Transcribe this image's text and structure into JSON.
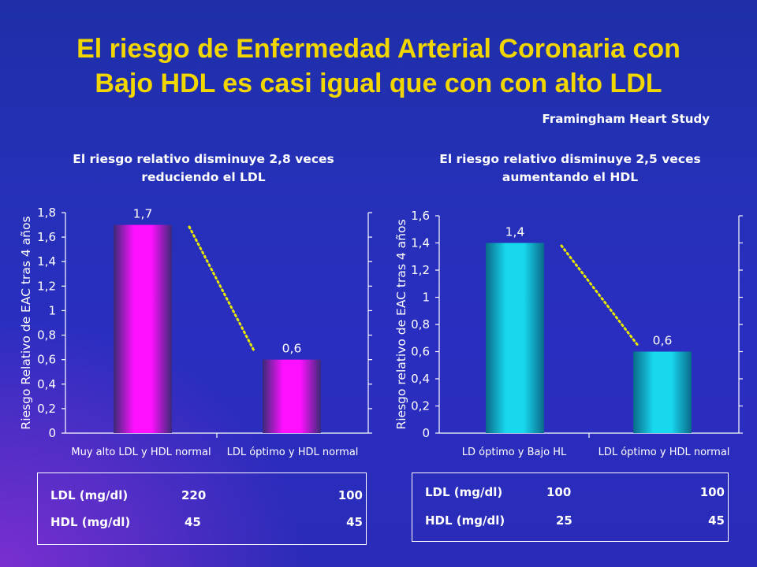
{
  "slide": {
    "title_line1": "El riesgo de Enfermedad Arterial Coronaria con",
    "title_line2": "Bajo HDL es casi igual que con con alto LDL",
    "source": "Framingham Heart Study"
  },
  "colors": {
    "title": "#f2d600",
    "bar_left_center": "#ff10ff",
    "bar_left_edge": "#3a2a78",
    "bar_right_center": "#18d8ee",
    "bar_right_edge": "#0a6a8a",
    "trend_line": "#e8e800"
  },
  "chart_data": [
    {
      "type": "bar",
      "subtitle_line1": "El riesgo relativo disminuye 2,8 veces",
      "subtitle_line2": "reduciendo el LDL",
      "ylabel": "Riesgo Relativo de EAC tras 4 años",
      "categories": [
        "Muy alto LDL y HDL normal",
        "LDL óptimo y HDL normal"
      ],
      "values": [
        1.7,
        0.6
      ],
      "value_labels": [
        "1,7",
        "0,6"
      ],
      "ylim": [
        0,
        1.8
      ],
      "yticks": [
        0,
        0.2,
        0.4,
        0.6,
        0.8,
        1,
        1.2,
        1.4,
        1.6,
        1.8
      ],
      "ytick_labels": [
        "0",
        "0,2",
        "0,4",
        "0,6",
        "0,8",
        "1",
        "1,2",
        "1,4",
        "1,6",
        "1,8"
      ],
      "trend_line": "dotted",
      "grid": false
    },
    {
      "type": "bar",
      "subtitle_line1": "El riesgo relativo disminuye 2,5 veces",
      "subtitle_line2": "aumentando el HDL",
      "ylabel": "Riesgo relativo de EAC tras 4 años",
      "categories": [
        "LD óptimo y Bajo HL",
        "LDL óptimo y HDL normal"
      ],
      "values": [
        1.4,
        0.6
      ],
      "value_labels": [
        "1,4",
        "0,6"
      ],
      "ylim": [
        0,
        1.6
      ],
      "yticks": [
        0,
        0.2,
        0.4,
        0.6,
        0.8,
        1,
        1.2,
        1.4,
        1.6
      ],
      "ytick_labels": [
        "0",
        "0,2",
        "0,4",
        "0,6",
        "0,8",
        "1",
        "1,2",
        "1,4",
        "1,6"
      ],
      "trend_line": "dotted",
      "grid": false
    }
  ],
  "tables": [
    {
      "rows": [
        {
          "label": "LDL (mg/dl)",
          "v1": "220",
          "v2": "100"
        },
        {
          "label": "HDL (mg/dl)",
          "v1": "45",
          "v2": "45"
        }
      ]
    },
    {
      "rows": [
        {
          "label": "LDL (mg/dl)",
          "v1": "100",
          "v2": "100"
        },
        {
          "label": "HDL (mg/dl)",
          "v1": "25",
          "v2": "45"
        }
      ]
    }
  ]
}
